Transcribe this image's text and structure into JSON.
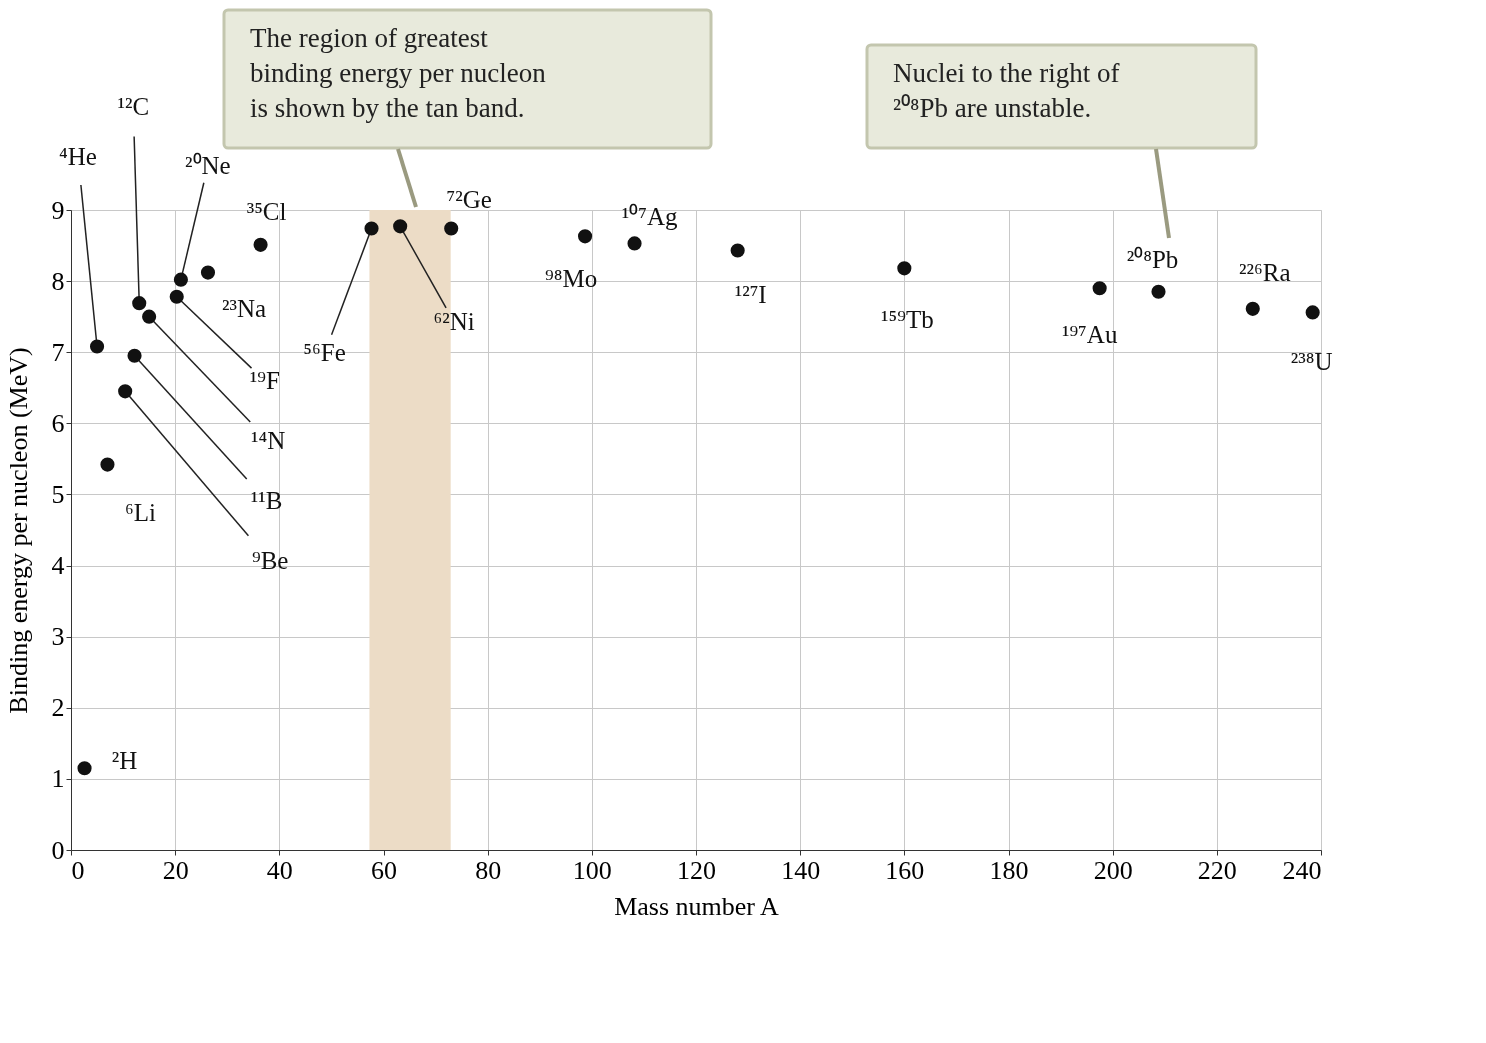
{
  "chart_data": {
    "type": "scatter",
    "xlabel": "Mass number A",
    "ylabel": "Binding energy per nucleon (MeV)",
    "x": [
      2.6,
      5,
      7,
      10.4,
      12.2,
      13.1,
      15,
      20.3,
      21.1,
      26.3,
      36.4,
      57.7,
      63.2,
      73,
      98.7,
      108.2,
      128,
      160,
      197.5,
      208.8,
      226.9,
      238.4
    ],
    "values": [
      1.15,
      7.08,
      5.42,
      6.45,
      6.95,
      7.69,
      7.5,
      7.78,
      8.02,
      8.12,
      8.51,
      8.74,
      8.77,
      8.74,
      8.63,
      8.53,
      8.43,
      8.18,
      7.9,
      7.85,
      7.61,
      7.56
    ],
    "color": "#111111",
    "marker": "circle",
    "xlim": [
      0,
      240
    ],
    "ylim": [
      0,
      9
    ],
    "xticks": [
      0,
      20,
      40,
      60,
      80,
      100,
      120,
      140,
      160,
      180,
      200,
      220,
      240
    ],
    "yticks": [
      0,
      1,
      2,
      3,
      4,
      5,
      6,
      7,
      8,
      9
    ],
    "grid": true,
    "bands": [
      {
        "axis": "x",
        "from": 57.3,
        "to": 72.9,
        "color": "#ecdcc6"
      }
    ],
    "annotations": [
      {
        "text": "²H",
        "x": 2.6,
        "y": 1.15
      },
      {
        "text": "⁴He",
        "x": 5,
        "y": 7.08
      },
      {
        "text": "⁶Li",
        "x": 7,
        "y": 5.42
      },
      {
        "text": "⁹Be",
        "x": 10.4,
        "y": 6.45
      },
      {
        "text": "¹¹B",
        "x": 12.2,
        "y": 6.95
      },
      {
        "text": "¹²C",
        "x": 13.1,
        "y": 7.69
      },
      {
        "text": "¹⁴N",
        "x": 15,
        "y": 7.5
      },
      {
        "text": "¹⁹F",
        "x": 20.3,
        "y": 7.78
      },
      {
        "text": "²⁰Ne",
        "x": 21.1,
        "y": 8.02
      },
      {
        "text": "²³Na",
        "x": 26.3,
        "y": 8.12
      },
      {
        "text": "³⁵Cl",
        "x": 36.4,
        "y": 8.51
      },
      {
        "text": "⁵⁶Fe",
        "x": 57.7,
        "y": 8.74
      },
      {
        "text": "⁶²Ni",
        "x": 63.2,
        "y": 8.77
      },
      {
        "text": "⁷²Ge",
        "x": 73,
        "y": 8.74
      },
      {
        "text": "⁹⁸Mo",
        "x": 98.7,
        "y": 8.63
      },
      {
        "text": "¹⁰⁷Ag",
        "x": 108.2,
        "y": 8.53
      },
      {
        "text": "¹²⁷I",
        "x": 128,
        "y": 8.43
      },
      {
        "text": "¹⁵⁹Tb",
        "x": 160,
        "y": 8.18
      },
      {
        "text": "¹⁹⁷Au",
        "x": 197.5,
        "y": 7.9
      },
      {
        "text": "²⁰⁸Pb",
        "x": 208.8,
        "y": 7.85
      },
      {
        "text": "²²⁶Ra",
        "x": 226.9,
        "y": 7.61
      },
      {
        "text": "²³⁸U",
        "x": 238.4,
        "y": 7.56
      },
      "The region of greatest binding energy per nucleon is shown by the tan band.",
      "Nuclei to the right of ²⁰⁸Pb are unstable."
    ]
  }
}
